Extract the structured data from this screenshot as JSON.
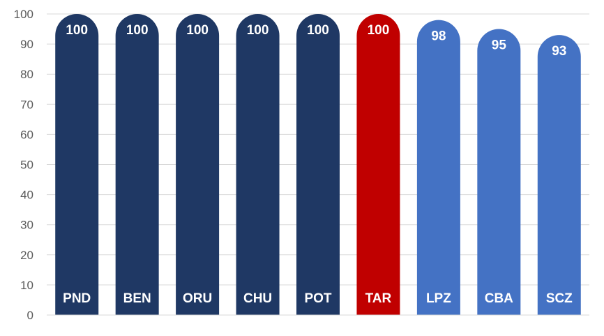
{
  "chart_data": {
    "type": "bar",
    "categories": [
      "PND",
      "BEN",
      "ORU",
      "CHU",
      "POT",
      "TAR",
      "LPZ",
      "CBA",
      "SCZ"
    ],
    "values": [
      100,
      100,
      100,
      100,
      100,
      100,
      98,
      95,
      93
    ],
    "bar_colors": [
      "#1f3864",
      "#1f3864",
      "#1f3864",
      "#1f3864",
      "#1f3864",
      "#c00000",
      "#4472c4",
      "#4472c4",
      "#4472c4"
    ],
    "ylim": [
      0,
      100
    ],
    "yticks": [
      0,
      10,
      20,
      30,
      40,
      50,
      60,
      70,
      80,
      90,
      100
    ],
    "grid": true,
    "title": "",
    "xlabel": "",
    "ylabel": ""
  }
}
